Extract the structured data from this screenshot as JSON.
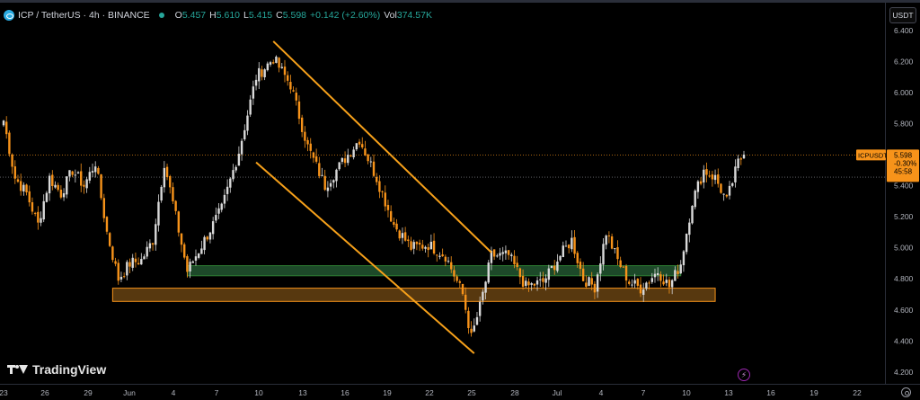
{
  "legend": {
    "symbol": "ICP / TetherUS · 4h · BINANCE",
    "open_label": "O",
    "open": "5.457",
    "high_label": "H",
    "high": "5.610",
    "low_label": "L",
    "low": "5.415",
    "close_label": "C",
    "close": "5.598",
    "change": "+0.142 (+2.60%)",
    "vol_label": "Vol",
    "vol": "374.57K",
    "status_color": "#26a69a"
  },
  "currency_button": "USDT",
  "price_tag": {
    "symbol": "ICPUSDT",
    "price": "5.598",
    "change_pct": "-0.30%",
    "countdown": "45:58",
    "color": "#f7931a"
  },
  "branding": {
    "logo_text": "TradingView",
    "icons": [
      "tradingview-logo-icon",
      "gear-icon",
      "lightning-icon"
    ]
  },
  "colors": {
    "up": "#d9d9d9",
    "down": "#f7931a",
    "trendline": "#f7a11a",
    "support_green": "#1f4d2b",
    "support_orange": "#5c3b10",
    "price_line": "#f7931a",
    "background": "#000000"
  },
  "chart_data": {
    "type": "candlestick",
    "y_axis": {
      "ticks": [
        "6.400",
        "6.200",
        "6.000",
        "5.800",
        "5.600",
        "5.400",
        "5.200",
        "5.000",
        "4.800",
        "4.600",
        "4.400",
        "4.200"
      ],
      "range": [
        4.13,
        6.48
      ],
      "side": "right"
    },
    "x_axis": {
      "ticks": [
        "23",
        "26",
        "29",
        "Jun",
        "4",
        "7",
        "10",
        "13",
        "16",
        "19",
        "22",
        "25",
        "28",
        "Jul",
        "4",
        "7",
        "10",
        "13",
        "16",
        "19",
        "22"
      ]
    },
    "anchors": [
      {
        "i": 0,
        "p": 5.82
      },
      {
        "i": 4,
        "p": 5.45
      },
      {
        "i": 8,
        "p": 5.35
      },
      {
        "i": 12,
        "p": 5.15
      },
      {
        "i": 16,
        "p": 5.45
      },
      {
        "i": 20,
        "p": 5.35
      },
      {
        "i": 24,
        "p": 5.5
      },
      {
        "i": 28,
        "p": 5.4
      },
      {
        "i": 32,
        "p": 5.55
      },
      {
        "i": 36,
        "p": 5.1
      },
      {
        "i": 40,
        "p": 4.8
      },
      {
        "i": 44,
        "p": 4.9
      },
      {
        "i": 48,
        "p": 4.92
      },
      {
        "i": 52,
        "p": 5.05
      },
      {
        "i": 56,
        "p": 5.55
      },
      {
        "i": 60,
        "p": 5.2
      },
      {
        "i": 64,
        "p": 4.85
      },
      {
        "i": 70,
        "p": 5.05
      },
      {
        "i": 76,
        "p": 5.25
      },
      {
        "i": 82,
        "p": 5.62
      },
      {
        "i": 88,
        "p": 6.1
      },
      {
        "i": 94,
        "p": 6.22
      },
      {
        "i": 100,
        "p": 6.05
      },
      {
        "i": 106,
        "p": 5.65
      },
      {
        "i": 112,
        "p": 5.4
      },
      {
        "i": 118,
        "p": 5.55
      },
      {
        "i": 124,
        "p": 5.7
      },
      {
        "i": 130,
        "p": 5.45
      },
      {
        "i": 136,
        "p": 5.15
      },
      {
        "i": 142,
        "p": 5.0
      },
      {
        "i": 148,
        "p": 5.02
      },
      {
        "i": 154,
        "p": 4.95
      },
      {
        "i": 160,
        "p": 4.7
      },
      {
        "i": 163,
        "p": 4.42
      },
      {
        "i": 166,
        "p": 4.62
      },
      {
        "i": 170,
        "p": 4.95
      },
      {
        "i": 176,
        "p": 4.95
      },
      {
        "i": 182,
        "p": 4.75
      },
      {
        "i": 188,
        "p": 4.78
      },
      {
        "i": 194,
        "p": 4.95
      },
      {
        "i": 198,
        "p": 5.05
      },
      {
        "i": 202,
        "p": 4.8
      },
      {
        "i": 206,
        "p": 4.75
      },
      {
        "i": 210,
        "p": 5.1
      },
      {
        "i": 214,
        "p": 4.92
      },
      {
        "i": 218,
        "p": 4.78
      },
      {
        "i": 222,
        "p": 4.74
      },
      {
        "i": 228,
        "p": 4.85
      },
      {
        "i": 232,
        "p": 4.75
      },
      {
        "i": 236,
        "p": 4.9
      },
      {
        "i": 240,
        "p": 5.3
      },
      {
        "i": 244,
        "p": 5.5
      },
      {
        "i": 248,
        "p": 5.45
      },
      {
        "i": 252,
        "p": 5.3
      },
      {
        "i": 256,
        "p": 5.55
      },
      {
        "i": 258,
        "p": 5.6
      }
    ],
    "horizontal_lines": [
      {
        "price": 5.598,
        "style": "dotted"
      },
      {
        "price": 5.455,
        "style": "dotted"
      }
    ],
    "trendlines": [
      {
        "from": [
          94,
          6.33
        ],
        "to": [
          170,
          4.97
        ]
      },
      {
        "from": [
          88,
          5.55
        ],
        "to": [
          164,
          4.32
        ]
      }
    ],
    "zones": [
      {
        "name": "support-upper",
        "x_from": 64,
        "x_to": 236,
        "p_top": 4.885,
        "p_bottom": 4.82,
        "color": "#1f4d2b"
      },
      {
        "name": "support-lower",
        "x_from": 38,
        "x_to": 248,
        "p_top": 4.74,
        "p_bottom": 4.655,
        "color": "#5c3b10"
      }
    ],
    "grid": false
  }
}
